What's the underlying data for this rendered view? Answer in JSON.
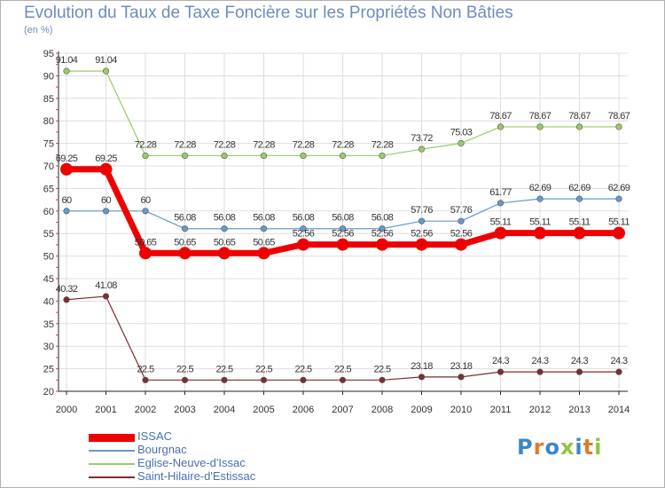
{
  "title": "Evolution du Taux de Taxe Foncière sur les Propriétés Non Bâties",
  "subtitle": "(en %)",
  "logo": {
    "text": "Proxiti",
    "colors": [
      "#3b86c8",
      "#e07a2c",
      "#3b86c8",
      "#8cc63e",
      "#3b86c8",
      "#e07a2c",
      "#8cc63e"
    ]
  },
  "colors": {
    "grid": "#dddddd",
    "axis": "#222222",
    "tick_red": "#e23b3b",
    "label": "#333333",
    "title": "#6b8cbf"
  },
  "chart_data": {
    "type": "line",
    "title": "Evolution du Taux de Taxe Foncière sur les Propriétés Non Bâties",
    "ylabel": "(en %)",
    "xlabel": "",
    "ylim": [
      20,
      95
    ],
    "yticks": [
      "20",
      "25",
      "30",
      "35",
      "40",
      "45",
      "50",
      "55",
      "60",
      "65",
      "70",
      "75",
      "80",
      "85",
      "90",
      "95"
    ],
    "categories": [
      "2000",
      "2001",
      "2002",
      "2003",
      "2004",
      "2005",
      "2006",
      "2007",
      "2008",
      "2009",
      "2010",
      "2011",
      "2012",
      "2013",
      "2014"
    ],
    "grid": true,
    "legend_position": "bottom-left",
    "series": [
      {
        "name": "ISSAC",
        "color": "#ee0000",
        "values": [
          69.25,
          69.25,
          50.65,
          50.65,
          50.65,
          50.65,
          52.56,
          52.56,
          52.56,
          52.56,
          52.56,
          55.11,
          55.11,
          55.11,
          55.11
        ],
        "labels": [
          "69.25",
          "69.25",
          "50.65",
          "50.65",
          "50.65",
          "50.65",
          "52.56",
          "52.56",
          "52.56",
          "52.56",
          "52.56",
          "55.11",
          "55.11",
          "55.11",
          "55.11"
        ]
      },
      {
        "name": "Bourgnac",
        "color": "#6699cc",
        "values": [
          60,
          60,
          60,
          56.08,
          56.08,
          56.08,
          56.08,
          56.08,
          56.08,
          57.76,
          57.76,
          61.77,
          62.69,
          62.69,
          62.69
        ],
        "labels": [
          "60",
          "60",
          "60",
          "56.08",
          "56.08",
          "56.08",
          "56.08",
          "56.08",
          "56.08",
          "57.76",
          "57.76",
          "61.77",
          "62.69",
          "62.69",
          "62.69"
        ]
      },
      {
        "name": "Eglise-Neuve-d'Issac",
        "color": "#99cc66",
        "values": [
          91.04,
          91.04,
          72.28,
          72.28,
          72.28,
          72.28,
          72.28,
          72.28,
          72.28,
          73.72,
          75.03,
          78.67,
          78.67,
          78.67,
          78.67
        ],
        "labels": [
          "91.04",
          "91.04",
          "72.28",
          "72.28",
          "72.28",
          "72.28",
          "72.28",
          "72.28",
          "72.28",
          "73.72",
          "75.03",
          "78.67",
          "78.67",
          "78.67",
          "78.67"
        ]
      },
      {
        "name": "Saint-Hilaire-d'Estissac",
        "color": "#7a2e2e",
        "values": [
          40.32,
          41.08,
          22.5,
          22.5,
          22.5,
          22.5,
          22.5,
          22.5,
          22.5,
          23.18,
          23.18,
          24.3,
          24.3,
          24.3,
          24.3
        ],
        "labels": [
          "40.32",
          "41.08",
          "22.5",
          "22.5",
          "22.5",
          "22.5",
          "22.5",
          "22.5",
          "22.5",
          "23.18",
          "23.18",
          "24.3",
          "24.3",
          "24.3",
          "24.3"
        ]
      }
    ]
  }
}
